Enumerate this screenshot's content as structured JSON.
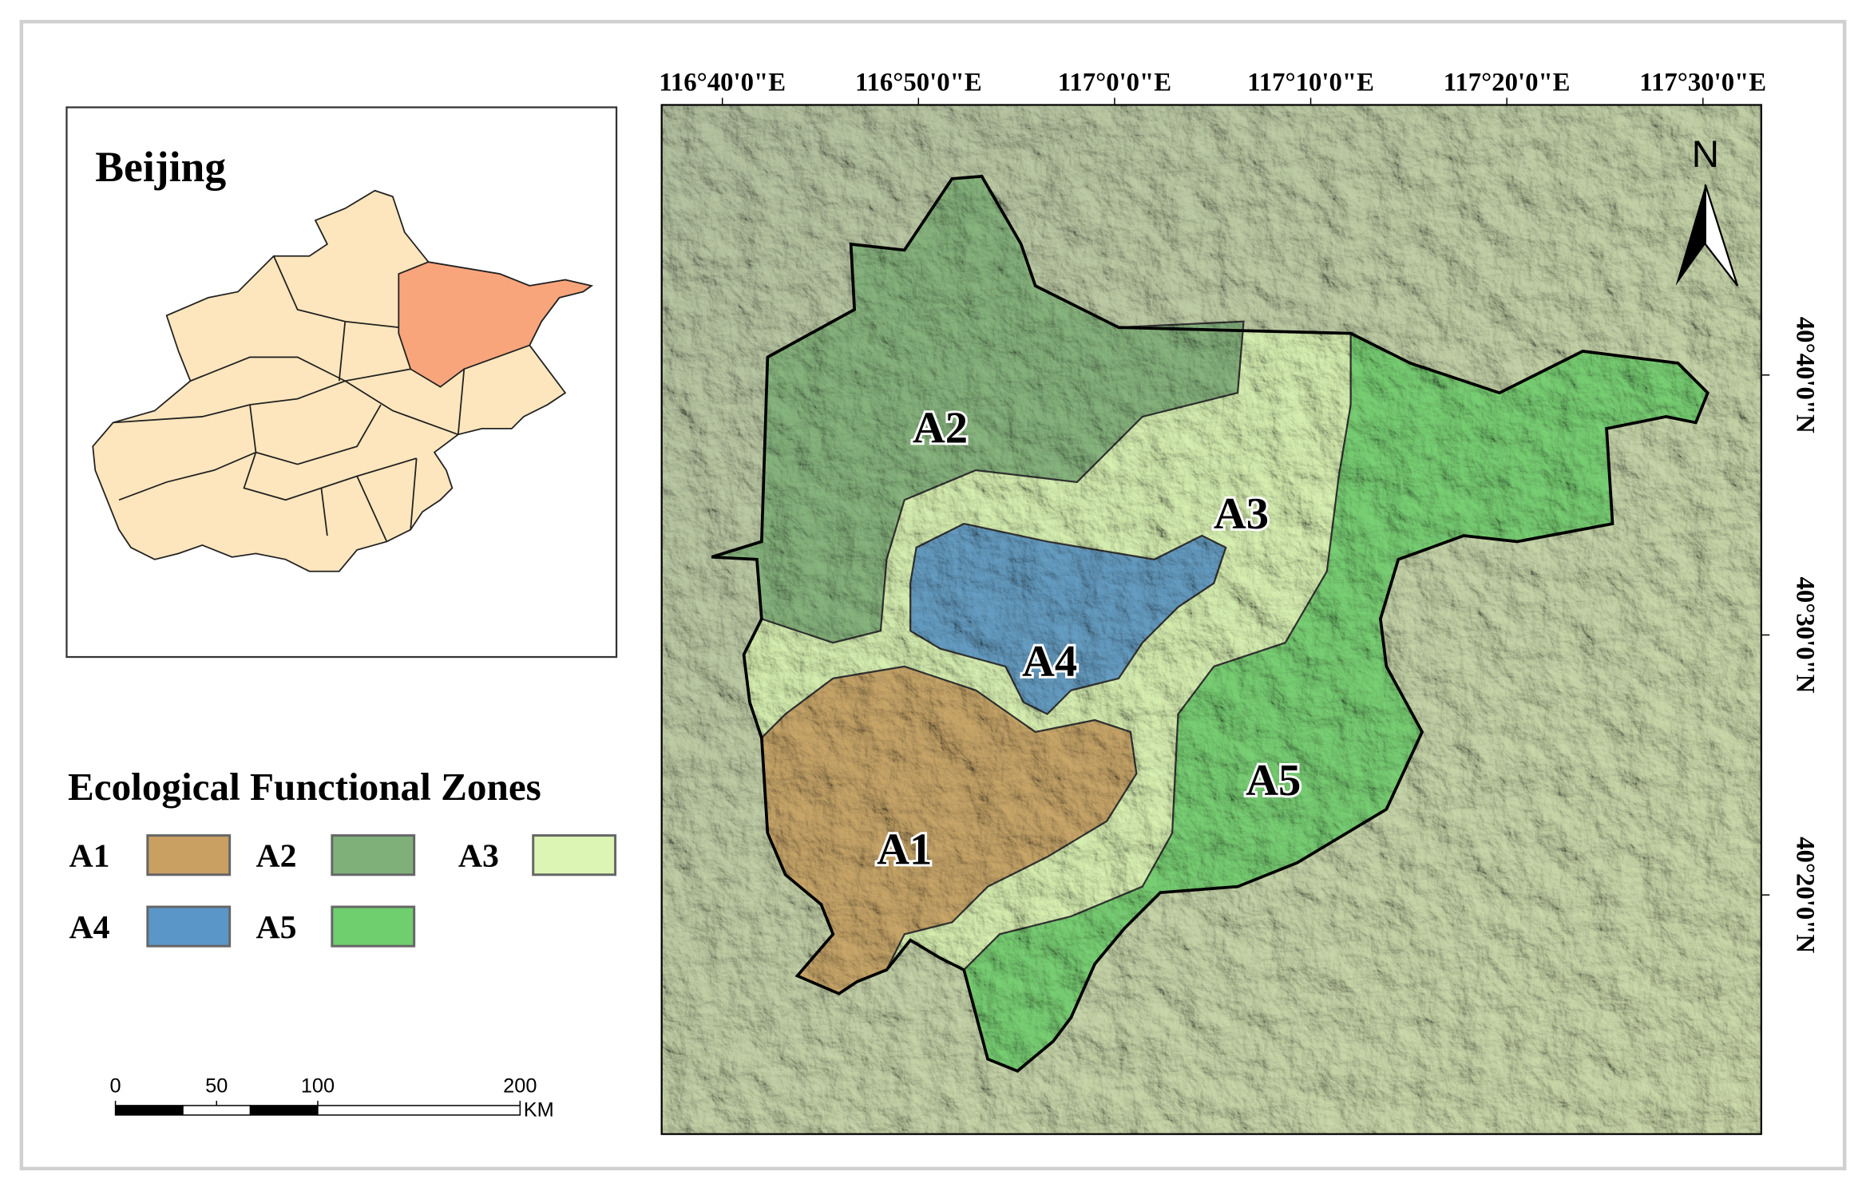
{
  "inset": {
    "title": "Beijing"
  },
  "map": {
    "lon_labels": [
      "116°40'0\"E",
      "116°50'0\"E",
      "117°0'0\"E",
      "117°10'0\"E",
      "117°20'0\"E",
      "117°30'0\"E"
    ],
    "lat_labels": [
      "40°40'0\"N",
      "40°30'0\"N",
      "40°20'0\"N"
    ],
    "north": "N",
    "zones": [
      {
        "label": "A1"
      },
      {
        "label": "A2"
      },
      {
        "label": "A3"
      },
      {
        "label": "A4"
      },
      {
        "label": "A5"
      }
    ]
  },
  "legend": {
    "title": "Ecological Functional Zones",
    "items": [
      {
        "label": "A1",
        "color": "#c9a062"
      },
      {
        "label": "A2",
        "color": "#7fb07a"
      },
      {
        "label": "A3",
        "color": "#dcf5b4"
      },
      {
        "label": "A4",
        "color": "#5a97c8"
      },
      {
        "label": "A5",
        "color": "#6fcf6e"
      }
    ]
  },
  "scale_bar": {
    "ticks": [
      0,
      50,
      100,
      200
    ],
    "unit": "KM"
  }
}
